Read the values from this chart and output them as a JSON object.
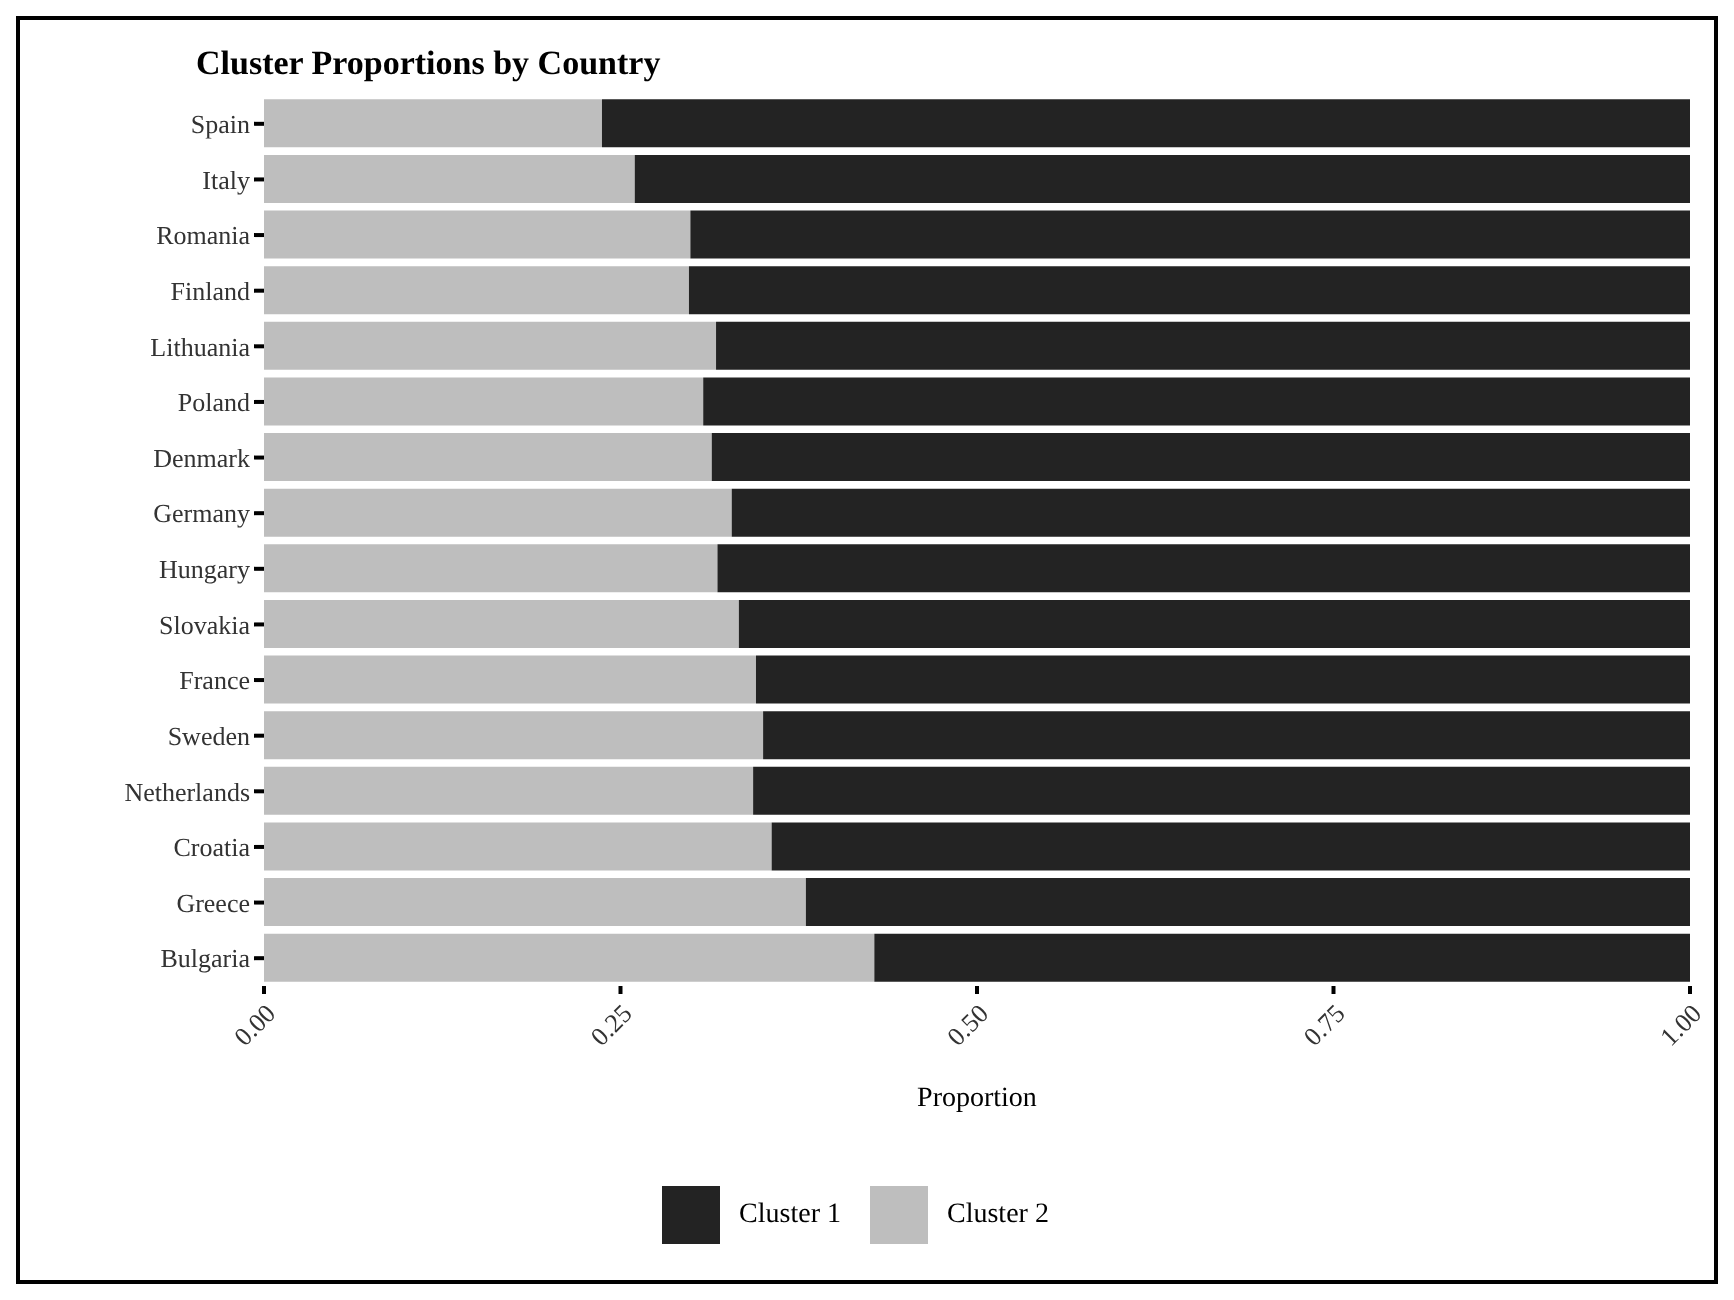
{
  "chart_data": {
    "type": "bar",
    "orientation": "horizontal",
    "stacked": true,
    "title": "Cluster Proportions by Country",
    "xlabel": "Proportion",
    "categories": [
      "Spain",
      "Italy",
      "Romania",
      "Finland",
      "Lithuania",
      "Poland",
      "Denmark",
      "Germany",
      "Hungary",
      "Slovakia",
      "France",
      "Sweden",
      "Netherlands",
      "Croatia",
      "Greece",
      "Bulgaria"
    ],
    "series": [
      {
        "name": "Cluster 2",
        "color": "#bebebe",
        "values": [
          0.237,
          0.26,
          0.299,
          0.298,
          0.317,
          0.308,
          0.314,
          0.328,
          0.318,
          0.333,
          0.345,
          0.35,
          0.343,
          0.356,
          0.38,
          0.428
        ]
      },
      {
        "name": "Cluster 1",
        "color": "#232323",
        "values": [
          0.763,
          0.74,
          0.701,
          0.702,
          0.683,
          0.692,
          0.686,
          0.672,
          0.682,
          0.667,
          0.655,
          0.65,
          0.657,
          0.644,
          0.62,
          0.572
        ]
      }
    ],
    "xlim": [
      0,
      1
    ],
    "xticks": [
      {
        "value": 0,
        "label": "0.00"
      },
      {
        "value": 0.25,
        "label": "0.25"
      },
      {
        "value": 0.5,
        "label": "0.50"
      },
      {
        "value": 0.75,
        "label": "0.75"
      },
      {
        "value": 1,
        "label": "1.00"
      }
    ],
    "grid": false,
    "legend": "bottom"
  }
}
